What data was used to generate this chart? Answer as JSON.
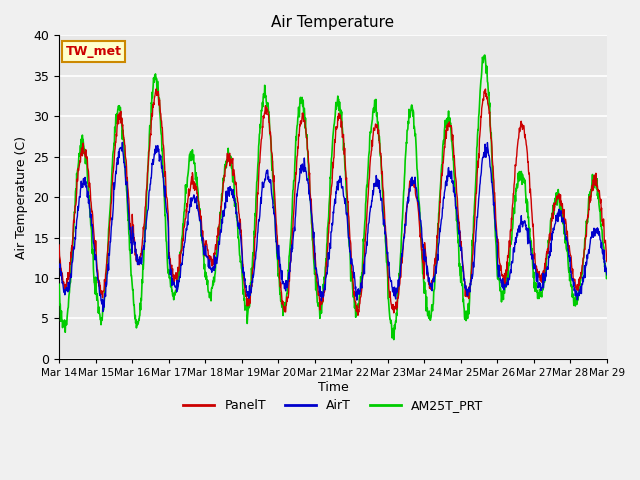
{
  "title": "Air Temperature",
  "xlabel": "Time",
  "ylabel": "Air Temperature (C)",
  "ylim": [
    0,
    40
  ],
  "background_color": "#f0f0f0",
  "plot_bg_color": "#e8e8e8",
  "grid_color": "#ffffff",
  "annotation_text": "TW_met",
  "annotation_box_facecolor": "#ffffcc",
  "annotation_text_color": "#cc0000",
  "annotation_border_color": "#cc8800",
  "x_tick_labels": [
    "Mar 14",
    "Mar 15",
    "Mar 16",
    "Mar 17",
    "Mar 18",
    "Mar 19",
    "Mar 20",
    "Mar 21",
    "Mar 22",
    "Mar 23",
    "Mar 24",
    "Mar 25",
    "Mar 26",
    "Mar 27",
    "Mar 28",
    "Mar 29"
  ],
  "line_colors": {
    "PanelT": "#cc0000",
    "AirT": "#0000cc",
    "AM25T_PRT": "#00cc00"
  },
  "line_widths": {
    "PanelT": 1.0,
    "AirT": 1.0,
    "AM25T_PRT": 1.2
  },
  "panel_peaks": [
    26,
    30,
    33,
    22,
    25,
    31,
    30,
    30,
    29,
    22,
    29,
    33,
    29,
    20,
    22
  ],
  "panel_lows": [
    9,
    8,
    12,
    10,
    12,
    7,
    6,
    7,
    6,
    6,
    9,
    8,
    10,
    10,
    9
  ],
  "air_peaks": [
    22,
    26,
    26,
    20,
    21,
    23,
    24,
    22,
    22,
    22,
    23,
    26,
    17,
    18,
    16
  ],
  "air_lows": [
    8,
    7,
    12,
    9,
    11,
    8,
    9,
    8,
    8,
    8,
    9,
    8,
    9,
    9,
    8
  ],
  "am25_peaks": [
    27,
    31,
    35,
    25,
    25,
    33,
    32,
    32,
    31,
    31,
    30,
    37,
    23,
    20,
    22
  ],
  "am25_lows": [
    4,
    5,
    4,
    8,
    8,
    6,
    6,
    6,
    6,
    3,
    5,
    5,
    8,
    8,
    7
  ],
  "random_seed": 7
}
